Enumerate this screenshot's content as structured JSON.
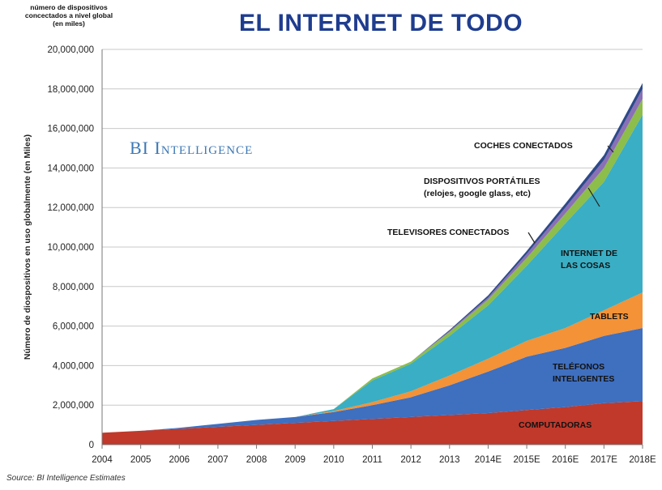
{
  "header": {
    "corner_note_lines": [
      "número de dispositivos",
      "concectados a nivel global",
      "(en miles)"
    ],
    "title": "EL INTERNET DE TODO",
    "brand": "BI Intelligence",
    "source": "Source: BI Intelligence Estimates"
  },
  "chart_data": {
    "type": "area",
    "title": "EL INTERNET DE TODO",
    "ylabel": "Número de diospositivos en uso globalmente (en Miles)",
    "xlabel": "",
    "stacked": true,
    "grid": "horizontal",
    "ylim": [
      0,
      20000000
    ],
    "yticks": [
      0,
      2000000,
      4000000,
      6000000,
      8000000,
      10000000,
      12000000,
      14000000,
      16000000,
      18000000,
      20000000
    ],
    "ytick_labels": [
      "0",
      "2,000,000",
      "4,000,000",
      "6,000,000",
      "8,000,000",
      "10,000,000",
      "12,000,000",
      "14,000,000",
      "16,000,000",
      "18,000,000",
      "20,000,000"
    ],
    "categories": [
      "2004",
      "2005",
      "2006",
      "2007",
      "2008",
      "2009",
      "2010",
      "2011",
      "2012",
      "2013",
      "2014E",
      "2015E",
      "2016E",
      "2017E",
      "2018E"
    ],
    "series": [
      {
        "name": "COMPUTADORAS",
        "color": "#c0392b",
        "values": [
          600000,
          700000,
          800000,
          900000,
          1000000,
          1100000,
          1200000,
          1300000,
          1400000,
          1500000,
          1600000,
          1750000,
          1900000,
          2100000,
          2200000
        ]
      },
      {
        "name": "TELÉFONOS INTELIGENTES",
        "color": "#3f6fbf",
        "values": [
          0,
          0,
          50000,
          150000,
          250000,
          300000,
          450000,
          700000,
          1000000,
          1500000,
          2100000,
          2700000,
          3000000,
          3400000,
          3700000
        ]
      },
      {
        "name": "TABLETS",
        "color": "#f39237",
        "values": [
          0,
          0,
          0,
          0,
          0,
          0,
          50000,
          150000,
          300000,
          500000,
          650000,
          800000,
          1000000,
          1300000,
          1800000
        ]
      },
      {
        "name": "INTERNET DE LAS COSAS",
        "color": "#3aaec4",
        "values": [
          0,
          0,
          0,
          0,
          0,
          0,
          100000,
          1100000,
          1400000,
          2000000,
          2700000,
          3800000,
          5300000,
          6500000,
          9000000
        ]
      },
      {
        "name": "TELEVISORES CONECTADOS",
        "color": "#8dbd4a",
        "values": [
          0,
          0,
          0,
          0,
          0,
          0,
          0,
          100000,
          100000,
          200000,
          300000,
          400000,
          500000,
          700000,
          800000
        ]
      },
      {
        "name": "DISPOSITIVOS PORTÁTILES (relojes, google glass, etc)",
        "color": "#8a70b6",
        "values": [
          0,
          0,
          0,
          0,
          0,
          0,
          0,
          0,
          0,
          50000,
          100000,
          200000,
          300000,
          400000,
          500000
        ]
      },
      {
        "name": "COCHES CONECTADOS",
        "color": "#2d4a8a",
        "values": [
          0,
          0,
          0,
          0,
          0,
          0,
          0,
          0,
          0,
          50000,
          100000,
          150000,
          200000,
          250000,
          300000
        ]
      }
    ],
    "annotations": {
      "computadoras": "COMPUTADORAS",
      "telefonos_1": "TELÉFONOS",
      "telefonos_2": "INTELIGENTES",
      "tablets": "TABLETS",
      "iot_1": "INTERNET DE",
      "iot_2": "LAS COSAS",
      "televisores": "TELEVISORES CONECTADOS",
      "portatiles_1": "DISPOSITIVOS PORTÁTILES",
      "portatiles_2": "(relojes, google glass, etc)",
      "coches": "COCHES CONECTADOS"
    }
  }
}
